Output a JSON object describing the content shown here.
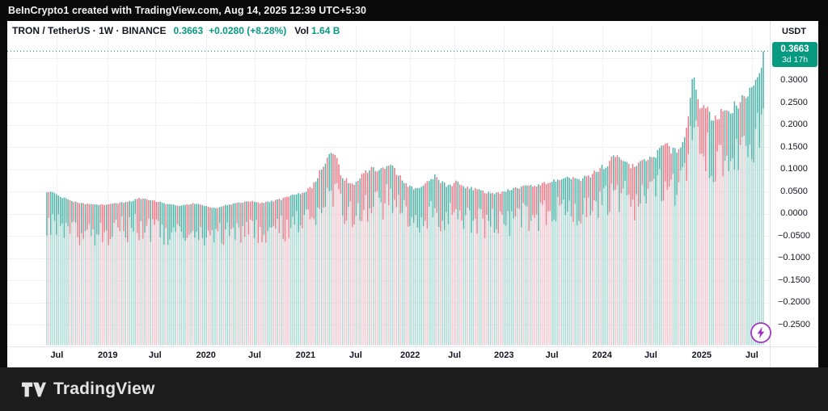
{
  "top_bar": {
    "text": "BeInCrypto1 created with TradingView.com, Aug 14, 2025 12:39 UTC+5:30"
  },
  "header": {
    "symbol_line": "TRON / TetherUS · 1W · BINANCE",
    "price": "0.3663",
    "change": "+0.0280 (+8.28%)",
    "vol_label": "Vol",
    "volume": "1.64 B"
  },
  "price_axis": {
    "currency": "USDT",
    "badge_price": "0.3663",
    "badge_countdown": "3d 17h"
  },
  "footer": {
    "brand": "TradingView"
  },
  "colors": {
    "accent_teal": "#089981",
    "accent_red": "#f23645",
    "badge_bg": "#089981",
    "boost_purple": "#a235c0",
    "grid": "#eef1f7",
    "axis_border": "#dfe3eb",
    "text_dark": "#131722"
  },
  "chart_data": {
    "type": "bar",
    "title": "TRON / TetherUS · 1W · BINANCE — weekly price bars (TRX/USDT)",
    "xlabel": "",
    "ylabel": "USDT",
    "interval": "1W",
    "current_price": 0.3663,
    "change_abs": 0.028,
    "change_pct": 8.28,
    "volume_label": "1.64 B",
    "grid": true,
    "legend_position": "top-left",
    "ylim": [
      -0.2964,
      0.3945
    ],
    "y_tick_step": 0.05,
    "y_ticks": [
      {
        "label": "0.3000",
        "value": 0.3
      },
      {
        "label": "0.2500",
        "value": 0.25
      },
      {
        "label": "0.2000",
        "value": 0.2
      },
      {
        "label": "0.1500",
        "value": 0.15
      },
      {
        "label": "0.1000",
        "value": 0.1
      },
      {
        "label": "0.0500",
        "value": 0.05
      },
      {
        "label": "0.0000",
        "value": 0.0
      },
      {
        "label": "−0.0500",
        "value": -0.05
      },
      {
        "label": "−0.1000",
        "value": -0.1
      },
      {
        "label": "−0.1500",
        "value": -0.15
      },
      {
        "label": "−0.2000",
        "value": -0.2
      },
      {
        "label": "−0.2500",
        "value": -0.25
      }
    ],
    "x_ticks": [
      {
        "label": "Jul",
        "f": 0.014
      },
      {
        "label": "2019",
        "f": 0.085
      },
      {
        "label": "Jul",
        "f": 0.151
      },
      {
        "label": "2020",
        "f": 0.222
      },
      {
        "label": "Jul",
        "f": 0.29
      },
      {
        "label": "2021",
        "f": 0.361
      },
      {
        "label": "Jul",
        "f": 0.431
      },
      {
        "label": "2022",
        "f": 0.507
      },
      {
        "label": "Jul",
        "f": 0.569
      },
      {
        "label": "2023",
        "f": 0.638
      },
      {
        "label": "Jul",
        "f": 0.705
      },
      {
        "label": "2024",
        "f": 0.775
      },
      {
        "label": "Jul",
        "f": 0.843
      },
      {
        "label": "2025",
        "f": 0.914
      },
      {
        "label": "Jul",
        "f": 0.984
      }
    ],
    "bars": 374,
    "series_note": "weekly-high envelope of TRX/USDT, f = position along time axis (Jun 2018 → Aug 2025)",
    "envelope": [
      [
        0.0,
        0.048
      ],
      [
        0.006,
        0.05
      ],
      [
        0.017,
        0.042
      ],
      [
        0.028,
        0.035
      ],
      [
        0.04,
        0.028
      ],
      [
        0.051,
        0.024
      ],
      [
        0.062,
        0.022
      ],
      [
        0.074,
        0.021
      ],
      [
        0.085,
        0.022
      ],
      [
        0.102,
        0.026
      ],
      [
        0.119,
        0.03
      ],
      [
        0.13,
        0.038
      ],
      [
        0.141,
        0.033
      ],
      [
        0.153,
        0.03
      ],
      [
        0.17,
        0.022
      ],
      [
        0.187,
        0.019
      ],
      [
        0.204,
        0.024
      ],
      [
        0.217,
        0.02
      ],
      [
        0.229,
        0.015
      ],
      [
        0.238,
        0.013
      ],
      [
        0.249,
        0.02
      ],
      [
        0.266,
        0.025
      ],
      [
        0.283,
        0.03
      ],
      [
        0.3,
        0.026
      ],
      [
        0.317,
        0.031
      ],
      [
        0.334,
        0.038
      ],
      [
        0.348,
        0.046
      ],
      [
        0.36,
        0.052
      ],
      [
        0.371,
        0.065
      ],
      [
        0.382,
        0.105
      ],
      [
        0.389,
        0.125
      ],
      [
        0.396,
        0.14
      ],
      [
        0.4,
        0.148
      ],
      [
        0.405,
        0.128
      ],
      [
        0.412,
        0.085
      ],
      [
        0.421,
        0.078
      ],
      [
        0.428,
        0.068
      ],
      [
        0.436,
        0.085
      ],
      [
        0.443,
        0.095
      ],
      [
        0.452,
        0.108
      ],
      [
        0.462,
        0.1
      ],
      [
        0.469,
        0.105
      ],
      [
        0.477,
        0.115
      ],
      [
        0.484,
        0.108
      ],
      [
        0.492,
        0.09
      ],
      [
        0.5,
        0.072
      ],
      [
        0.509,
        0.062
      ],
      [
        0.52,
        0.058
      ],
      [
        0.529,
        0.072
      ],
      [
        0.541,
        0.09
      ],
      [
        0.549,
        0.078
      ],
      [
        0.56,
        0.065
      ],
      [
        0.571,
        0.075
      ],
      [
        0.583,
        0.065
      ],
      [
        0.594,
        0.06
      ],
      [
        0.609,
        0.053
      ],
      [
        0.624,
        0.046
      ],
      [
        0.639,
        0.055
      ],
      [
        0.656,
        0.062
      ],
      [
        0.673,
        0.066
      ],
      [
        0.69,
        0.07
      ],
      [
        0.707,
        0.077
      ],
      [
        0.724,
        0.085
      ],
      [
        0.741,
        0.082
      ],
      [
        0.756,
        0.088
      ],
      [
        0.769,
        0.105
      ],
      [
        0.78,
        0.115
      ],
      [
        0.794,
        0.14
      ],
      [
        0.805,
        0.122
      ],
      [
        0.82,
        0.112
      ],
      [
        0.835,
        0.125
      ],
      [
        0.846,
        0.132
      ],
      [
        0.862,
        0.165
      ],
      [
        0.873,
        0.15
      ],
      [
        0.885,
        0.158
      ],
      [
        0.894,
        0.205
      ],
      [
        0.897,
        0.245
      ],
      [
        0.902,
        0.322
      ],
      [
        0.906,
        0.282
      ],
      [
        0.912,
        0.24
      ],
      [
        0.919,
        0.248
      ],
      [
        0.925,
        0.235
      ],
      [
        0.933,
        0.222
      ],
      [
        0.941,
        0.24
      ],
      [
        0.948,
        0.235
      ],
      [
        0.956,
        0.252
      ],
      [
        0.964,
        0.262
      ],
      [
        0.971,
        0.27
      ],
      [
        0.979,
        0.282
      ],
      [
        0.986,
        0.295
      ],
      [
        0.992,
        0.308
      ],
      [
        0.997,
        0.325
      ],
      [
        1.0,
        0.3663
      ]
    ],
    "bar_colors": {
      "up": "#2fa79a",
      "up_light": "#a9dad3",
      "down": "#ef5f6e",
      "down_light": "#f5c6cf"
    }
  }
}
